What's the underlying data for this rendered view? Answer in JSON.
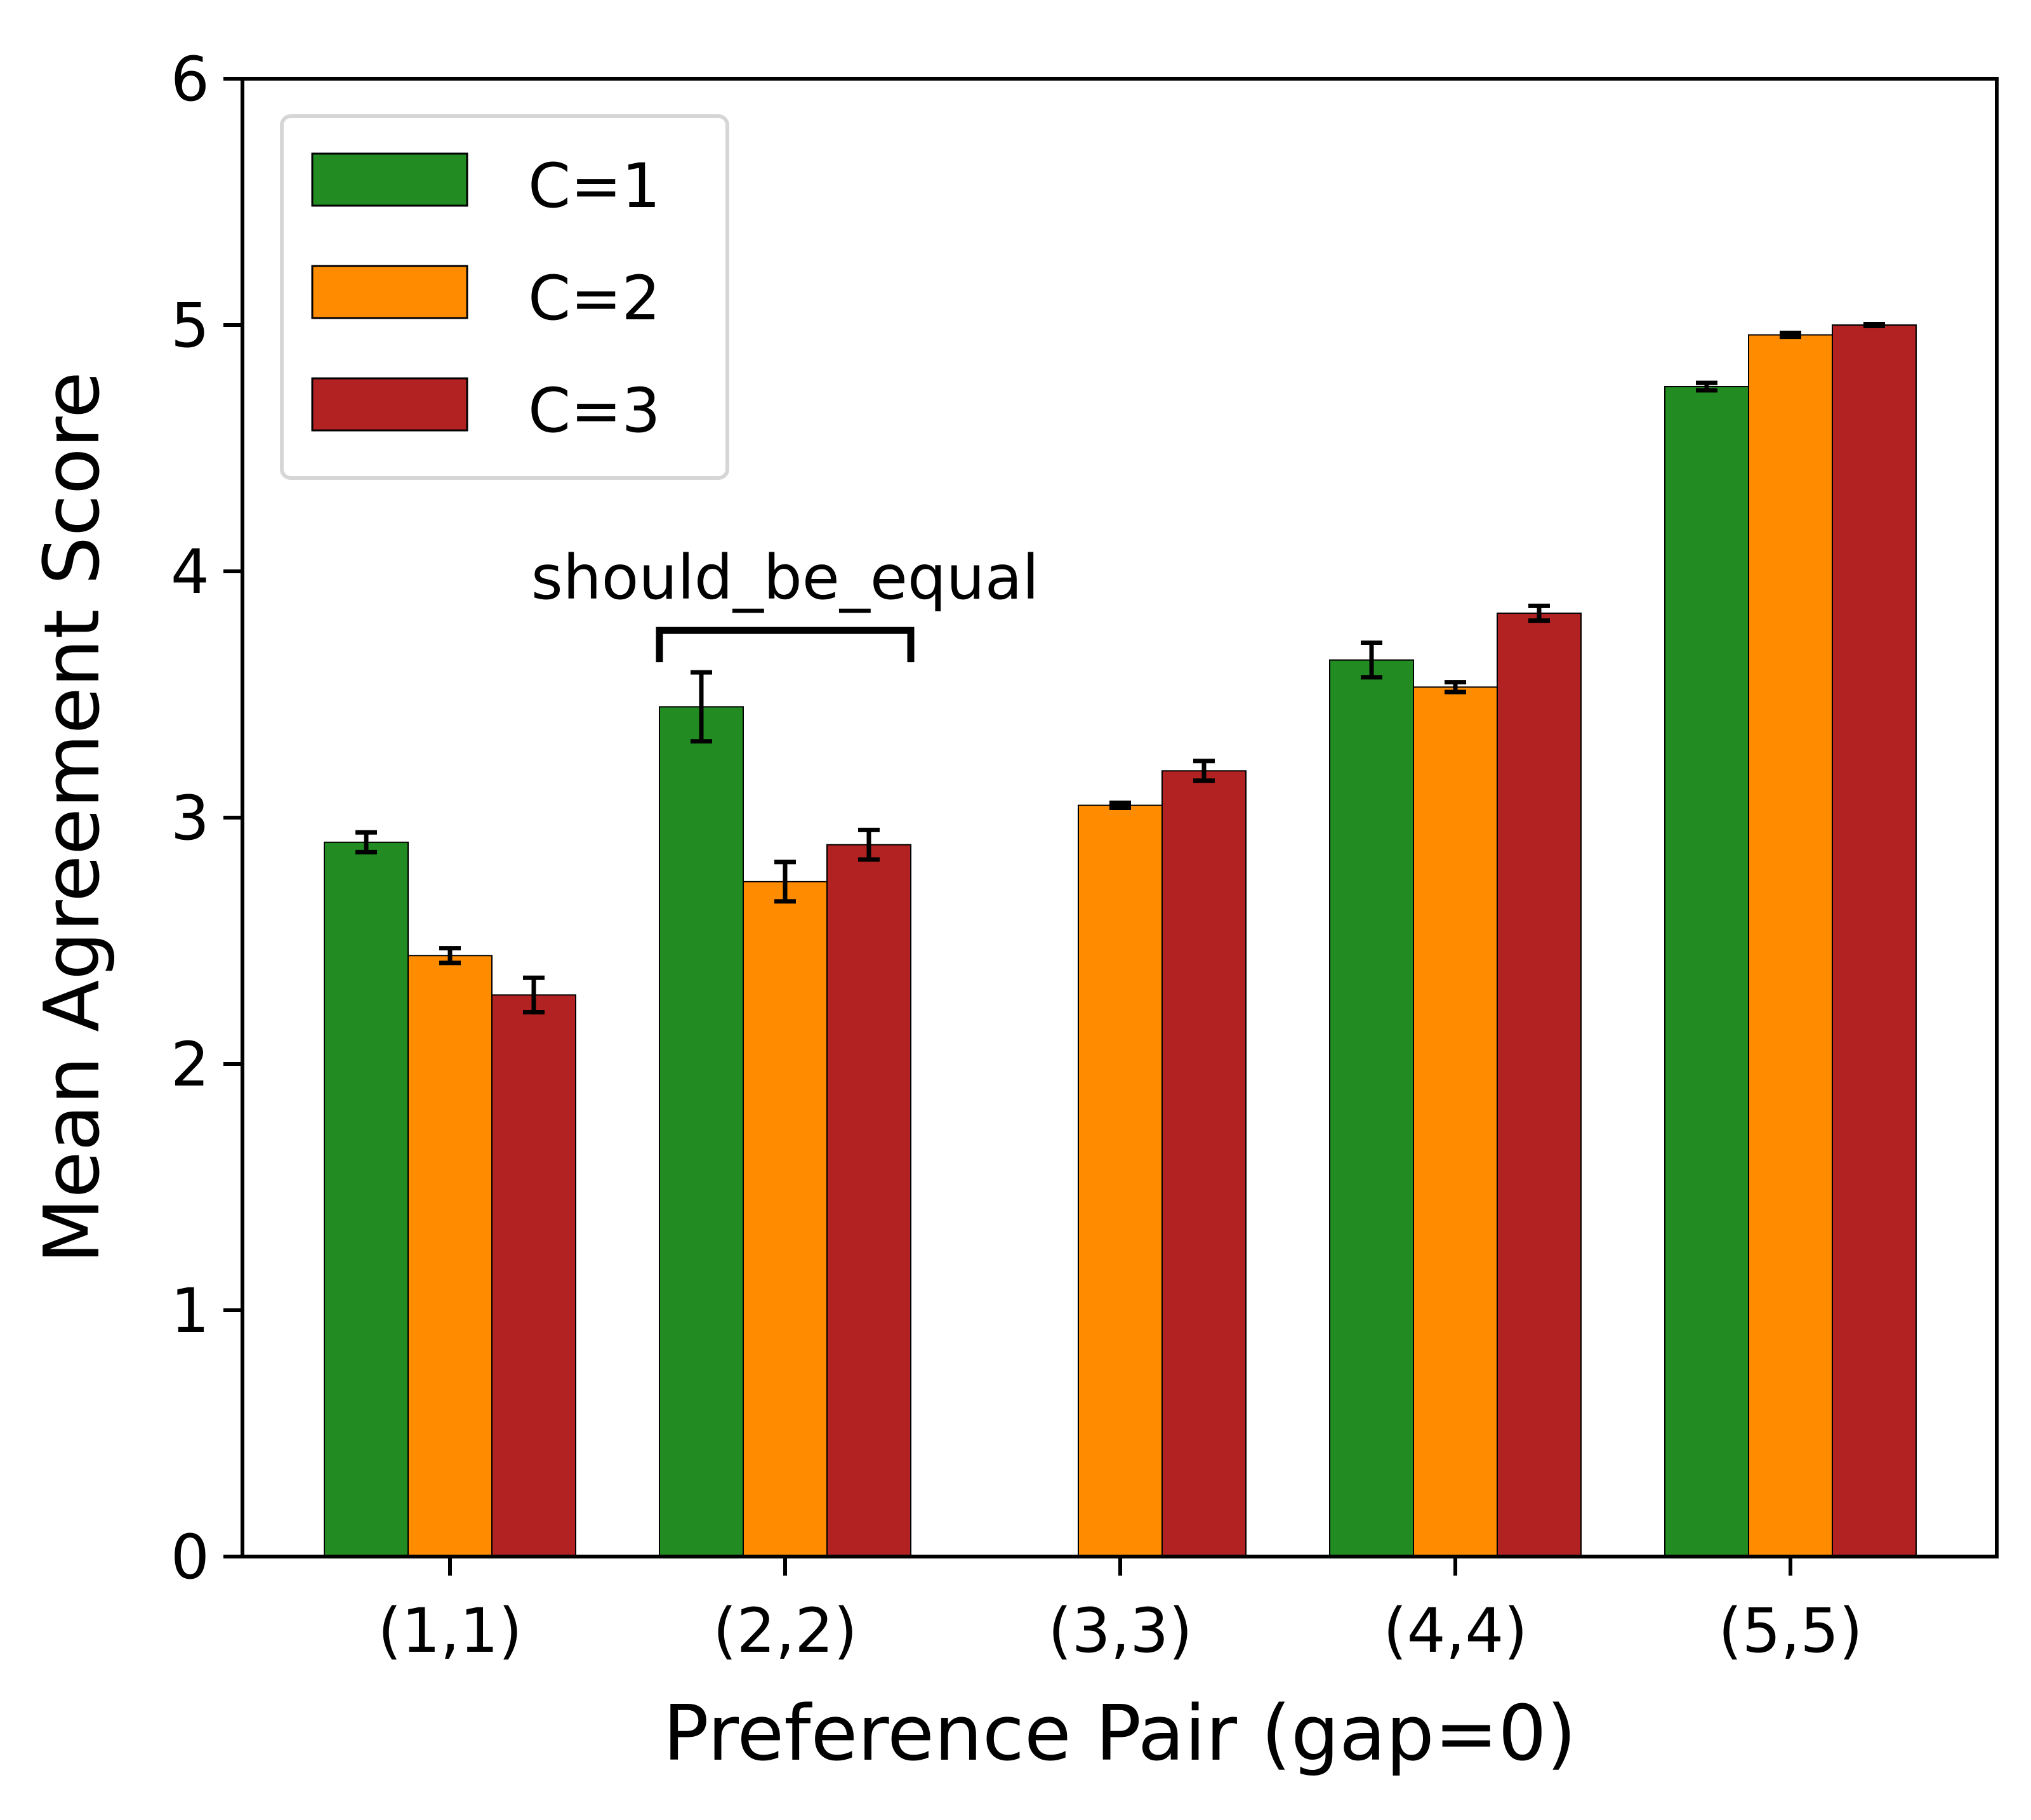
{
  "chart_data": {
    "type": "bar",
    "xlabel": "Preference Pair (gap=0)",
    "ylabel": "Mean Agreement Score",
    "ylim": [
      0,
      6
    ],
    "yticks": [
      "0",
      "1",
      "2",
      "3",
      "4",
      "5",
      "6"
    ],
    "categories": [
      "(1,1)",
      "(2,2)",
      "(3,3)",
      "(4,4)",
      "(5,5)"
    ],
    "series": [
      {
        "name": "C=1",
        "color": "#228b22",
        "values": [
          2.9,
          3.45,
          null,
          3.64,
          4.75
        ],
        "errors": [
          0.04,
          0.14,
          null,
          0.07,
          0.015
        ]
      },
      {
        "name": "C=2",
        "color": "#ff8c00",
        "values": [
          2.44,
          2.74,
          3.05,
          3.53,
          4.96
        ],
        "errors": [
          0.03,
          0.08,
          0.01,
          0.02,
          0.008
        ]
      },
      {
        "name": "C=3",
        "color": "#b22222",
        "values": [
          2.28,
          2.89,
          3.19,
          3.83,
          5.0
        ],
        "errors": [
          0.07,
          0.06,
          0.04,
          0.03,
          0.004
        ]
      }
    ],
    "annotation": {
      "text": "should_be_equal",
      "spans_category": "(2,2)",
      "from_series": "C=1",
      "to_series": "C=3",
      "bracket_y": 3.76
    },
    "legend_position": "top-left",
    "grid": false
  }
}
